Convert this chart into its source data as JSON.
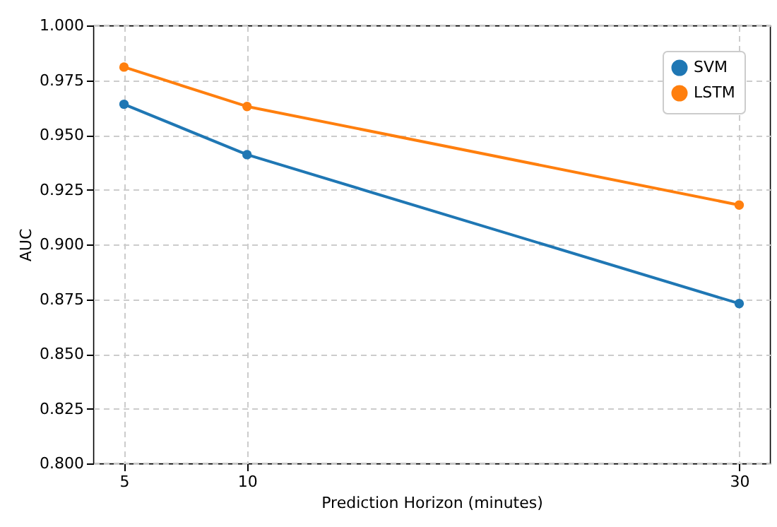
{
  "chart_data": {
    "type": "line",
    "xlabel": "Prediction Horizon (minutes)",
    "ylabel": "AUC",
    "x": [
      5,
      10,
      30
    ],
    "series": [
      {
        "name": "SVM",
        "color": "#1f77b4",
        "values": [
          0.964,
          0.941,
          0.873
        ]
      },
      {
        "name": "LSTM",
        "color": "#ff7f0e",
        "values": [
          0.981,
          0.963,
          0.918
        ]
      }
    ],
    "xlim": [
      3.75,
      31.25
    ],
    "xticks": [
      5,
      10,
      30
    ],
    "ylim": [
      0.8,
      1.0
    ],
    "yticks": [
      {
        "value": 0.8,
        "label": "0.800"
      },
      {
        "value": 0.825,
        "label": "0.825"
      },
      {
        "value": 0.85,
        "label": "0.850"
      },
      {
        "value": 0.875,
        "label": "0.875"
      },
      {
        "value": 0.9,
        "label": "0.900"
      },
      {
        "value": 0.925,
        "label": "0.925"
      },
      {
        "value": 0.95,
        "label": "0.950"
      },
      {
        "value": 0.975,
        "label": "0.975"
      },
      {
        "value": 1.0,
        "label": "1.000"
      }
    ],
    "grid": true,
    "legend": "top right",
    "marker": "circle",
    "line_style": "solid"
  }
}
